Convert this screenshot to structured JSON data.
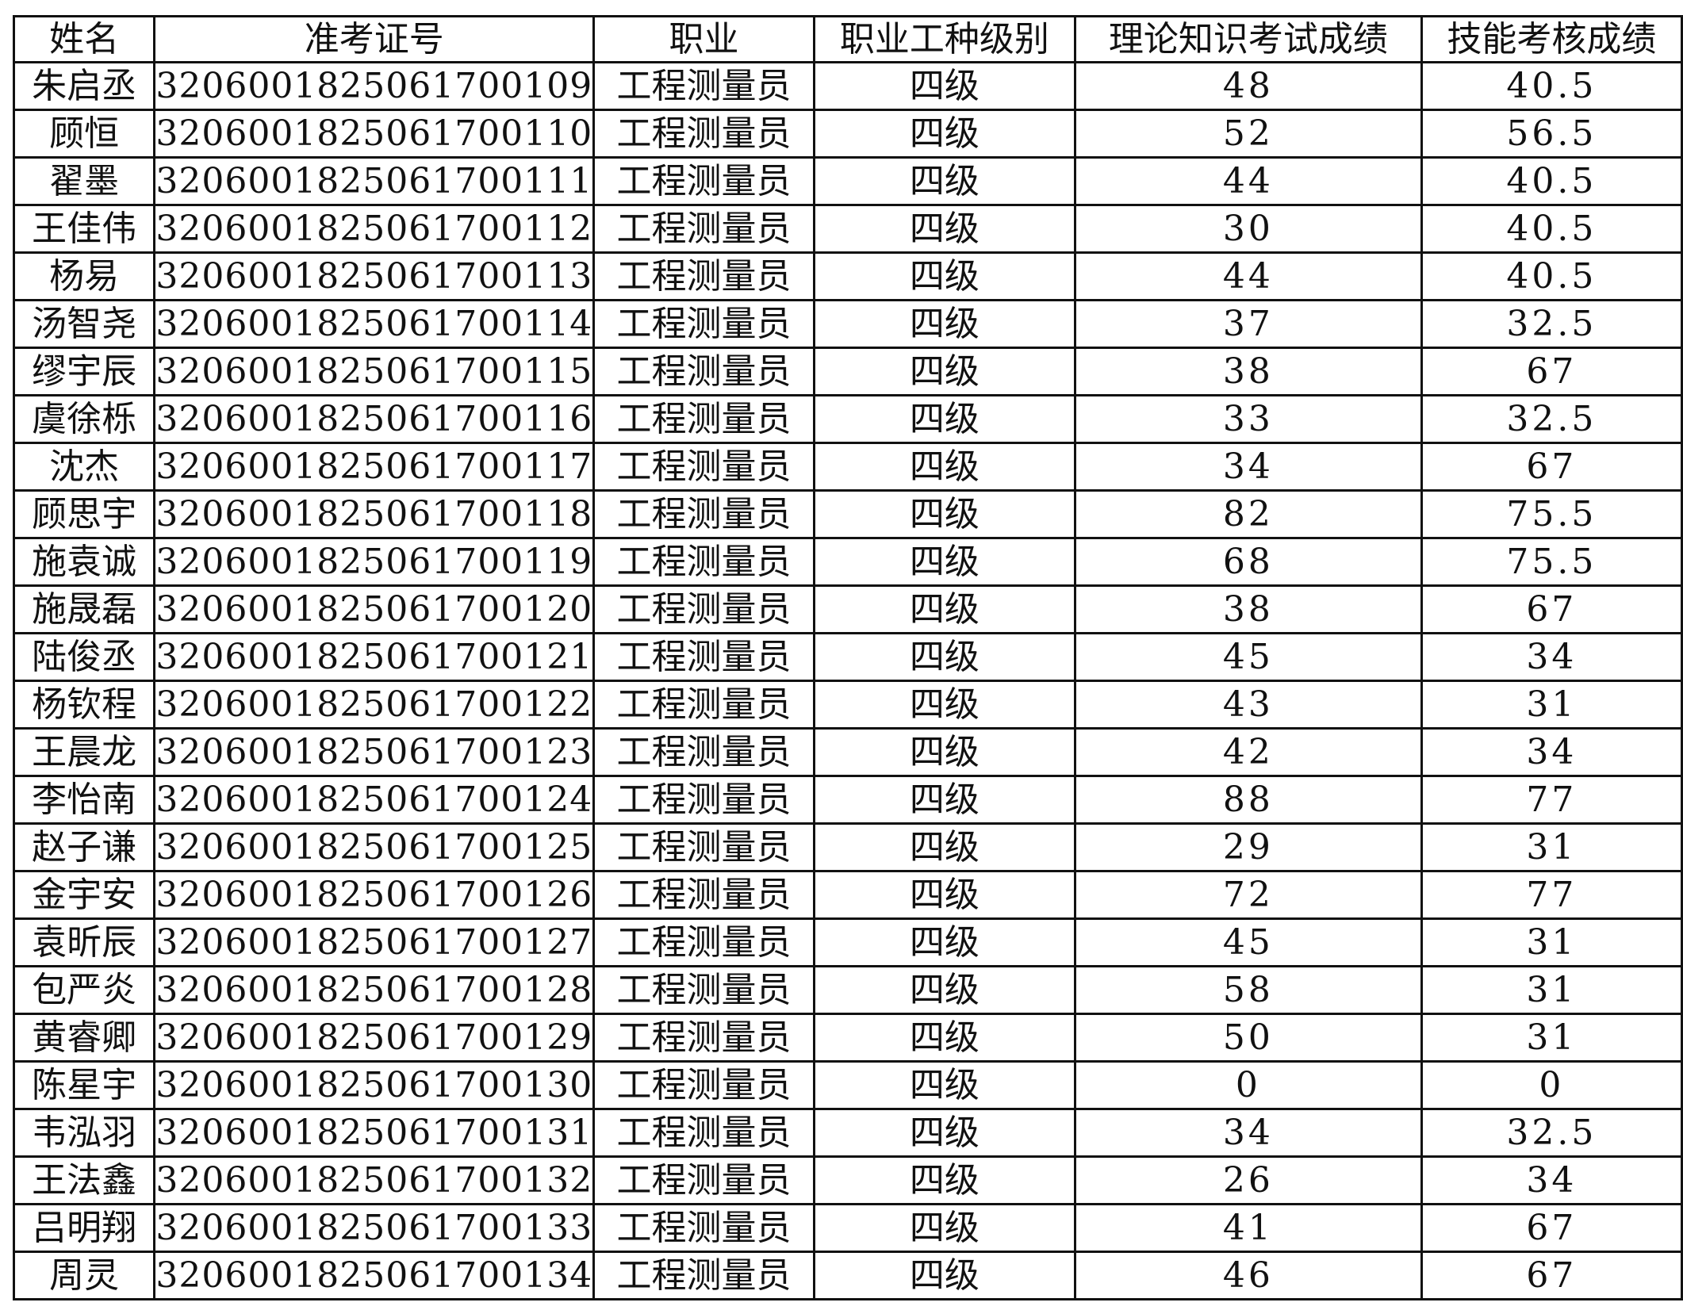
{
  "headers": [
    "姓名",
    "准考证号",
    "职业",
    "职业工种级别",
    "理论知识考试成绩",
    "技能考核成绩"
  ],
  "rows": [
    [
      "朱启丞",
      "320600182506170010​9",
      "工程测量员",
      "四级",
      "48",
      "40.5"
    ],
    [
      "顾恒",
      "3206001825061700110",
      "工程测量员",
      "四级",
      "52",
      "56.5"
    ],
    [
      "翟墨",
      "3206001825061700111",
      "工程测量员",
      "四级",
      "44",
      "40.5"
    ],
    [
      "王佳伟",
      "3206001825061700112",
      "工程测量员",
      "四级",
      "30",
      "40.5"
    ],
    [
      "杨易",
      "3206001825061700113",
      "工程测量员",
      "四级",
      "44",
      "40.5"
    ],
    [
      "汤智尧",
      "3206001825061700114",
      "工程测量员",
      "四级",
      "37",
      "32.5"
    ],
    [
      "缪宇辰",
      "3206001825061700115",
      "工程测量员",
      "四级",
      "38",
      "67"
    ],
    [
      "虞徐栎",
      "3206001825061700116",
      "工程测量员",
      "四级",
      "33",
      "32.5"
    ],
    [
      "沈杰",
      "3206001825061700117",
      "工程测量员",
      "四级",
      "34",
      "67"
    ],
    [
      "顾思宇",
      "3206001825061700118",
      "工程测量员",
      "四级",
      "82",
      "75.5"
    ],
    [
      "施袁诚",
      "3206001825061700119",
      "工程测量员",
      "四级",
      "68",
      "75.5"
    ],
    [
      "施晟磊",
      "3206001825061700120",
      "工程测量员",
      "四级",
      "38",
      "67"
    ],
    [
      "陆俊丞",
      "3206001825061700121",
      "工程测量员",
      "四级",
      "45",
      "34"
    ],
    [
      "杨钦程",
      "3206001825061700122",
      "工程测量员",
      "四级",
      "43",
      "31"
    ],
    [
      "王晨龙",
      "3206001825061700123",
      "工程测量员",
      "四级",
      "42",
      "34"
    ],
    [
      "李怡南",
      "3206001825061700124",
      "工程测量员",
      "四级",
      "88",
      "77"
    ],
    [
      "赵子谦",
      "3206001825061700125",
      "工程测量员",
      "四级",
      "29",
      "31"
    ],
    [
      "金宇安",
      "3206001825061700126",
      "工程测量员",
      "四级",
      "72",
      "77"
    ],
    [
      "袁昕辰",
      "3206001825061700127",
      "工程测量员",
      "四级",
      "45",
      "31"
    ],
    [
      "包严炎",
      "3206001825061700128",
      "工程测量员",
      "四级",
      "58",
      "31"
    ],
    [
      "黄睿卿",
      "3206001825061700129",
      "工程测量员",
      "四级",
      "50",
      "31"
    ],
    [
      "陈星宇",
      "3206001825061700130",
      "工程测量员",
      "四级",
      "0",
      "0"
    ],
    [
      "韦泓羽",
      "3206001825061700131",
      "工程测量员",
      "四级",
      "34",
      "32.5"
    ],
    [
      "王法鑫",
      "3206001825061700132",
      "工程测量员",
      "四级",
      "26",
      "34"
    ],
    [
      "吕明翔",
      "3206001825061700133",
      "工程测量员",
      "四级",
      "41",
      "67"
    ],
    [
      "周灵",
      "3206001825061700134",
      "工程测量员",
      "四级",
      "46",
      "67"
    ]
  ]
}
